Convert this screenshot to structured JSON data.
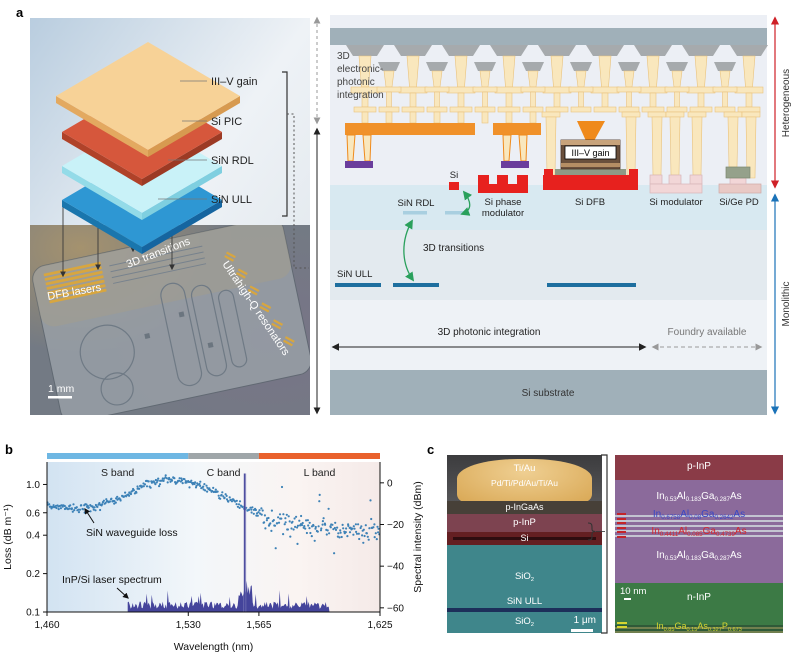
{
  "panel_a": {
    "label": "a",
    "stack": {
      "layers": [
        {
          "label": "III–V gain",
          "color": "#f7d297"
        },
        {
          "label": "Si PIC",
          "color": "#d6573c"
        },
        {
          "label": "SiN RDL",
          "color": "#c9f2f8"
        },
        {
          "label": "SiN ULL",
          "color": "#2e97d3"
        }
      ]
    },
    "chip": {
      "dfb_lasers": "DFB lasers",
      "transitions": "3D transitions",
      "resonators": "Ultrahigh-Q resonators",
      "scale_bar": "1 mm"
    },
    "cross": {
      "epi_lines": [
        "3D",
        "electronic-",
        "photonic",
        "integration"
      ],
      "sin_rdl": "SiN RDL",
      "si": "Si",
      "si_phase_lines": [
        "Si phase",
        "modulator"
      ],
      "iii_v": "III–V gain",
      "si_dfb": "Si DFB",
      "si_modulator": "Si modulator",
      "si_ge_pd": "Si/Ge PD",
      "transitions": "3D transitions",
      "sin_ull": "SiN ULL",
      "photonic": "3D photonic integration",
      "foundry": "Foundry available",
      "substrate": "Si substrate",
      "heterogeneous": "Heterogeneous",
      "monolithic": "Monolithic"
    }
  },
  "panel_b": {
    "label": "b"
  },
  "chart_data": {
    "type": "scatter",
    "xlabel": "Wavelength (nm)",
    "ylabel_left": "Loss (dB m⁻¹)",
    "ylabel_right": "Spectral intensity (dBm)",
    "xlim": [
      1460,
      1625
    ],
    "x_ticks": [
      {
        "v": 1460,
        "label": "1,460"
      },
      {
        "v": 1530,
        "label": "1,530"
      },
      {
        "v": 1565,
        "label": "1,565"
      },
      {
        "v": 1625,
        "label": "1,625"
      }
    ],
    "ylim_left": [
      0.1,
      1.5
    ],
    "log_left": true,
    "y_ticks_left": [
      {
        "v": 1.0,
        "label": "1.0"
      },
      {
        "v": 0.6,
        "label": "0.6"
      },
      {
        "v": 0.4,
        "label": "0.4"
      },
      {
        "v": 0.2,
        "label": "0.2"
      },
      {
        "v": 0.1,
        "label": "0.1"
      }
    ],
    "ylim_right": [
      10,
      -62
    ],
    "y_ticks_right": [
      {
        "v": 0,
        "label": "0"
      },
      {
        "v": -20,
        "label": "−20"
      },
      {
        "v": -40,
        "label": "−40"
      },
      {
        "v": -60,
        "label": "−60"
      }
    ],
    "bands": [
      {
        "label": "S band",
        "from": 1460,
        "to": 1530,
        "color": "#6eb7e3"
      },
      {
        "label": "C band",
        "from": 1530,
        "to": 1565,
        "color": "#9fa6a9"
      },
      {
        "label": "L band",
        "from": 1565,
        "to": 1625,
        "color": "#e9612c"
      }
    ],
    "scatter": {
      "name": "SiN waveguide loss",
      "color": "#2f79b2",
      "n_points": 430,
      "noise_sc": 0.05,
      "noise_l": 0.13,
      "trend": [
        [
          1460,
          0.7
        ],
        [
          1466,
          0.67
        ],
        [
          1472,
          0.65
        ],
        [
          1478,
          0.655
        ],
        [
          1484,
          0.67
        ],
        [
          1490,
          0.71
        ],
        [
          1496,
          0.78
        ],
        [
          1502,
          0.87
        ],
        [
          1508,
          0.97
        ],
        [
          1514,
          1.06
        ],
        [
          1519,
          1.1
        ],
        [
          1524,
          1.09
        ],
        [
          1530,
          1.04
        ],
        [
          1536,
          0.97
        ],
        [
          1542,
          0.89
        ],
        [
          1548,
          0.8
        ],
        [
          1554,
          0.71
        ],
        [
          1560,
          0.63
        ],
        [
          1565,
          0.58
        ],
        [
          1572,
          0.53
        ],
        [
          1580,
          0.5
        ],
        [
          1588,
          0.48
        ],
        [
          1596,
          0.46
        ],
        [
          1604,
          0.44
        ],
        [
          1612,
          0.43
        ],
        [
          1618,
          0.44
        ],
        [
          1625,
          0.46
        ]
      ]
    },
    "spectrum": {
      "name": "InP/Si laser spectrum",
      "color": "#44449b",
      "range_nm": [
        1500,
        1600
      ],
      "floor_dbm": -57,
      "floor_jitter_db": 3.5,
      "peak_nm": 1558,
      "peak_dbm": 4.5
    },
    "annotations": [
      {
        "text": "SiN waveguide loss"
      },
      {
        "text": "InP/Si laser spectrum"
      }
    ]
  },
  "panel_c": {
    "label": "c",
    "sem": {
      "ti_au": "Ti/Au",
      "pd_stack": "Pd/Ti/Pd/Au/Ti/Au",
      "p_ingaas": "p-InGaAs",
      "p_inp": "p-InP",
      "si": "Si",
      "sio2": "SiO|2",
      "sin_ull": "SiN ULL",
      "sio2_b": "SiO|2",
      "scale_bar": "1 μm"
    },
    "tem": {
      "p_inp": "p-InP",
      "layer1": "In|0.53|Al|0.183|Ga|0.287|As",
      "layer2": "In|0.6758|Al|0.08|Ga|0.2642|As",
      "layer3": "In|0.4411|Al|0.085|Ga|0.4739|As",
      "layer4": "In|0.53|Al|0.183|Ga|0.287|As",
      "n_inp": "n-InP",
      "scale_bar": "10 nm",
      "layer5": "In|0.85|Ga|0.15|As|0.327|P|0.673"
    }
  }
}
